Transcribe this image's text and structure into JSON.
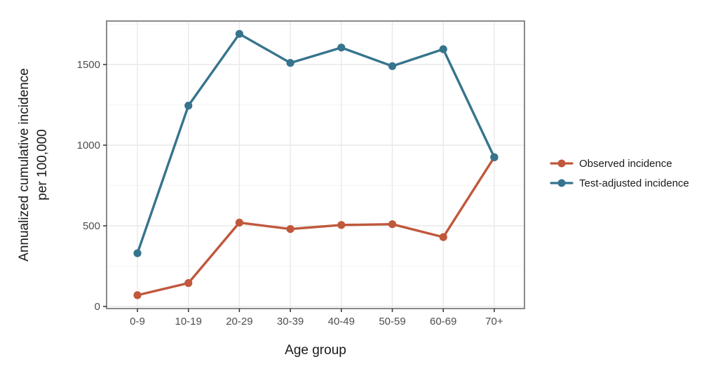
{
  "figure": {
    "background": "#ffffff",
    "panel_border_color": "#8a8a8a",
    "grid_major_color": "#e9e9e9",
    "grid_minor_color": "#f4f4f4",
    "tick_color": "#333333",
    "tick_label_color": "#4d4d4d",
    "axis_title_color": "#1a1a1a"
  },
  "chart_data": {
    "type": "line",
    "title": "",
    "xlabel": "Age group",
    "ylabel": "Annualized cumulative incidence per 100,000",
    "ylabel_lines": [
      "Annualized cumulative incidence",
      "per 100,000"
    ],
    "categories": [
      "0-9",
      "10-19",
      "20-29",
      "30-39",
      "40-49",
      "50-59",
      "60-69",
      "70+"
    ],
    "yticks": [
      0,
      500,
      1000,
      1500
    ],
    "yticks_minor": [
      250,
      750,
      1250,
      1750
    ],
    "ylim": [
      0,
      1750
    ],
    "grid": "major-and-minor-horizontal, major-vertical",
    "legend_position": "right",
    "series": [
      {
        "name": "Observed incidence",
        "color": "#c0583c",
        "values": [
          70,
          145,
          520,
          480,
          505,
          510,
          430,
          925
        ]
      },
      {
        "name": "Test-adjusted incidence",
        "color": "#36748d",
        "values": [
          330,
          1245,
          1690,
          1510,
          1605,
          1490,
          1595,
          925
        ]
      }
    ]
  }
}
